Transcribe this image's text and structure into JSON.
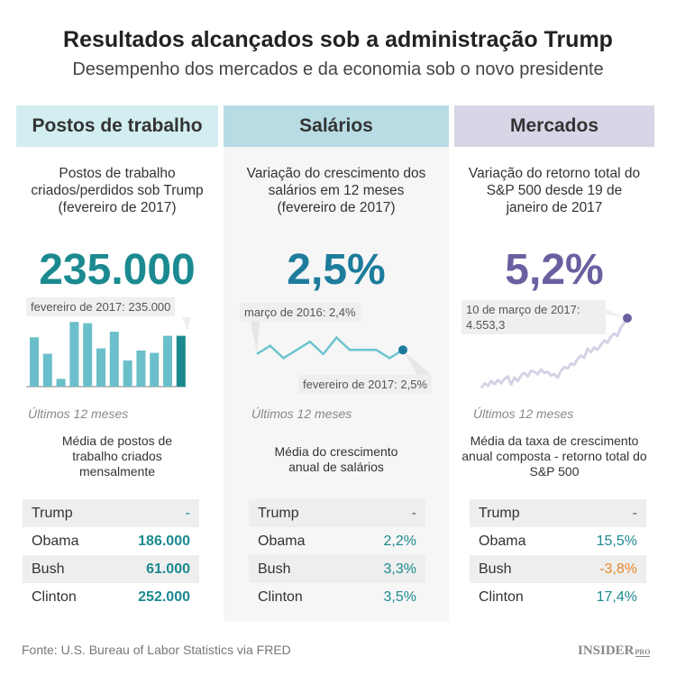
{
  "title": "Resultados alcançados sob a administração Trump",
  "subtitle": "Desempenho dos mercados e da economia sob o novo presidente",
  "colors": {
    "jobs": "#1b8a90",
    "jobs_bar": "#6bbfca",
    "wages": "#1d7c9c",
    "wages_line": "#6cc4cf",
    "markets": "#6c5fa0",
    "markets_line": "#d5d2e6",
    "negative": "#e8862a"
  },
  "columns": [
    {
      "header": "Postos de trabalho",
      "description": "Postos de trabalho criados/perdidos sob Trump (fevereiro de 2017)",
      "big": "235.000",
      "tooltip": "fevereiro de 2017: 235.000",
      "period": "Últimos 12 meses",
      "avg_label": "Média de postos de trabalho criados mensalmente",
      "table": [
        {
          "name": "Trump",
          "value": "-"
        },
        {
          "name": "Obama",
          "value": "186.000"
        },
        {
          "name": "Bush",
          "value": "61.000"
        },
        {
          "name": "Clinton",
          "value": "252.000"
        }
      ]
    },
    {
      "header": "Salários",
      "description": "Variação do crescimento dos salários em 12 meses (fevereiro de 2017)",
      "big": "2,5%",
      "tooltip_start": "março de 2016: 2,4%",
      "tooltip_end": "fevereiro de 2017: 2,5%",
      "period": "Últimos 12 meses",
      "avg_label": "Média do crescimento anual de salários",
      "table": [
        {
          "name": "Trump",
          "value": "-"
        },
        {
          "name": "Obama",
          "value": "2,2%"
        },
        {
          "name": "Bush",
          "value": "3,3%"
        },
        {
          "name": "Clinton",
          "value": "3,5%"
        }
      ]
    },
    {
      "header": "Mercados",
      "description": "Variação do retorno total do S&P 500 desde 19 de janeiro de 2017",
      "big": "5,2%",
      "tooltip": "10 de março de 2017: 4.553,3",
      "period": "Últimos 12 meses",
      "avg_label": "Média da taxa de crescimento anual composta - retorno total do S&P 500",
      "table": [
        {
          "name": "Trump",
          "value": "-"
        },
        {
          "name": "Obama",
          "value": "15,5%"
        },
        {
          "name": "Bush",
          "value": "-3,8%"
        },
        {
          "name": "Clinton",
          "value": "17,4%"
        }
      ]
    }
  ],
  "chart_data": [
    {
      "type": "bar",
      "values": [
        228000,
        152000,
        36000,
        299000,
        293000,
        177000,
        254000,
        121000,
        167000,
        156000,
        235000,
        235000
      ],
      "ylim": [
        0,
        300000
      ]
    },
    {
      "type": "line",
      "values": [
        2.4,
        2.6,
        2.3,
        2.5,
        2.7,
        2.4,
        2.8,
        2.5,
        2.5,
        2.5,
        2.3,
        2.5
      ],
      "ylim": [
        2.2,
        2.9
      ]
    },
    {
      "type": "line",
      "values": [
        3950,
        3990,
        3970,
        4010,
        3985,
        4020,
        3990,
        4030,
        4050,
        3980,
        4040,
        4010,
        4060,
        4080,
        4050,
        4100,
        4090,
        4070,
        4110,
        4080,
        4090,
        4060,
        4070,
        4040,
        4100,
        4130,
        4120,
        4160,
        4150,
        4200,
        4230,
        4210,
        4290,
        4260,
        4300,
        4280,
        4320,
        4360,
        4340,
        4390,
        4420,
        4400,
        4470,
        4510,
        4553.3
      ],
      "ylim": [
        3900,
        4600
      ]
    }
  ],
  "source": "Fonte: U.S. Bureau of Labor Statistics via FRED",
  "logo": "INSIDER PRO"
}
